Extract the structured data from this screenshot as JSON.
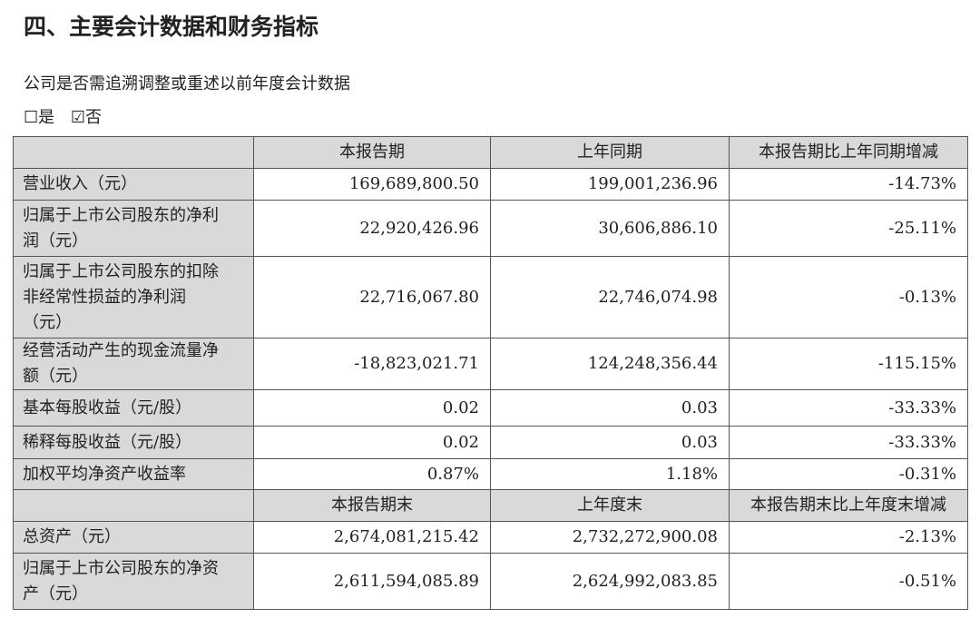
{
  "title": "四、主要会计数据和财务指标",
  "question": "公司是否需追溯调整或重述以前年度会计数据",
  "options": [
    {
      "label": "是",
      "checked": false,
      "box": "☐"
    },
    {
      "label": "否",
      "checked": true,
      "box": "☑"
    }
  ],
  "table": {
    "header1": [
      "",
      "本报告期",
      "上年同期",
      "本报告期比上年同期增减"
    ],
    "rows1": [
      {
        "label": "营业收入（元）",
        "values": [
          "169,689,800.50",
          "199,001,236.96",
          "-14.73%"
        ]
      },
      {
        "label": "归属于上市公司股东的净利\n润（元）",
        "values": [
          "22,920,426.96",
          "30,606,886.10",
          "-25.11%"
        ]
      },
      {
        "label": "归属于上市公司股东的扣除\n非经常性损益的净利润\n（元）",
        "values": [
          "22,716,067.80",
          "22,746,074.98",
          "-0.13%"
        ]
      },
      {
        "label": "经营活动产生的现金流量净\n额（元）",
        "values": [
          "-18,823,021.71",
          "124,248,356.44",
          "-115.15%"
        ]
      },
      {
        "label": "基本每股收益（元/股）",
        "values": [
          "0.02",
          "0.03",
          "-33.33%"
        ]
      },
      {
        "label": "稀释每股收益（元/股）",
        "values": [
          "0.02",
          "0.03",
          "-33.33%"
        ]
      },
      {
        "label": "加权平均净资产收益率",
        "values": [
          "0.87%",
          "1.18%",
          "-0.31%"
        ]
      }
    ],
    "header2": [
      "",
      "本报告期末",
      "上年度末",
      "本报告期末比上年度末增减"
    ],
    "rows2": [
      {
        "label": "总资产（元）",
        "values": [
          "2,674,081,215.42",
          "2,732,272,900.08",
          "-2.13%"
        ]
      },
      {
        "label": "归属于上市公司股东的净资\n产（元）",
        "values": [
          "2,611,594,085.89",
          "2,624,992,083.85",
          "-0.51%"
        ]
      }
    ]
  }
}
